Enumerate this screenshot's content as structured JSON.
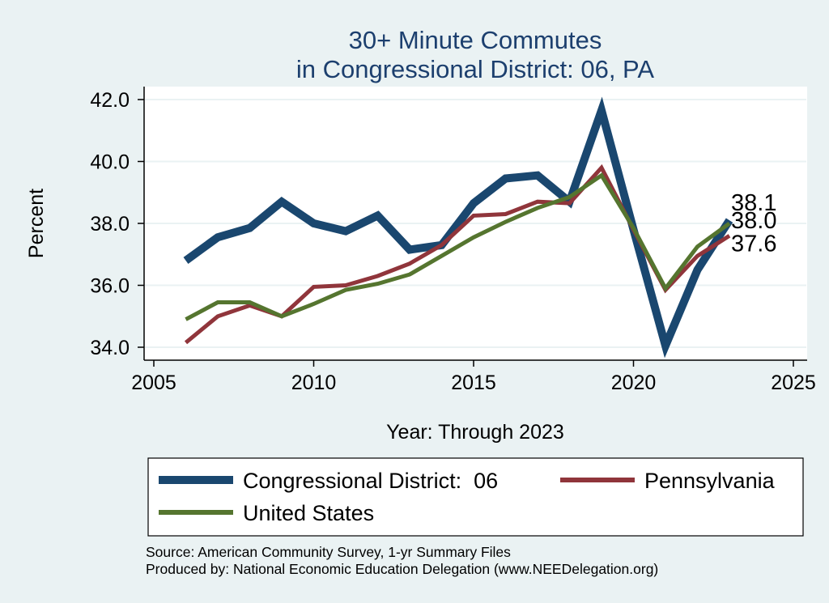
{
  "chart_data": {
    "type": "line",
    "title": "30+ Minute Commutes",
    "subtitle": "in Congressional District:  06, PA",
    "xlabel": "Year: Through 2023",
    "ylabel": "Percent",
    "xlim": [
      2005,
      2025
    ],
    "ylim": [
      34.0,
      42.0
    ],
    "x_ticks": [
      2005,
      2010,
      2015,
      2020,
      2025
    ],
    "y_ticks": [
      34.0,
      36.0,
      38.0,
      40.0,
      42.0
    ],
    "y_tick_labels": [
      "34.0",
      "36.0",
      "38.0",
      "40.0",
      "42.0"
    ],
    "grid": true,
    "legend_position": "bottom",
    "x": [
      2006,
      2007,
      2008,
      2009,
      2010,
      2011,
      2012,
      2013,
      2014,
      2015,
      2016,
      2017,
      2018,
      2019,
      2020,
      2021,
      2022,
      2023
    ],
    "series": [
      {
        "name": "Congressional District:  06",
        "color": "#1a476f",
        "values": [
          36.8,
          37.55,
          37.85,
          38.7,
          38.0,
          37.75,
          38.25,
          37.15,
          37.3,
          38.65,
          39.45,
          39.55,
          38.7,
          41.65,
          37.8,
          34.05,
          36.5,
          38.1
        ],
        "end_label": "38.1"
      },
      {
        "name": "Pennsylvania",
        "color": "#90353b",
        "values": [
          34.15,
          35.0,
          35.35,
          35.0,
          35.95,
          36.0,
          36.3,
          36.7,
          37.3,
          38.25,
          38.3,
          38.7,
          38.65,
          39.8,
          37.8,
          35.85,
          36.95,
          37.6
        ],
        "end_label": "37.6"
      },
      {
        "name": "United States",
        "color": "#55752f",
        "values": [
          34.9,
          35.45,
          35.45,
          35.0,
          35.4,
          35.85,
          36.05,
          36.35,
          36.95,
          37.55,
          38.05,
          38.5,
          38.85,
          39.55,
          37.85,
          35.9,
          37.25,
          38.0
        ],
        "end_label": "38.0"
      }
    ],
    "notes": [
      "Source: American Community Survey, 1-yr Summary Files",
      "Produced by: National Economic Education Delegation (www.NEEDelegation.org)"
    ]
  }
}
